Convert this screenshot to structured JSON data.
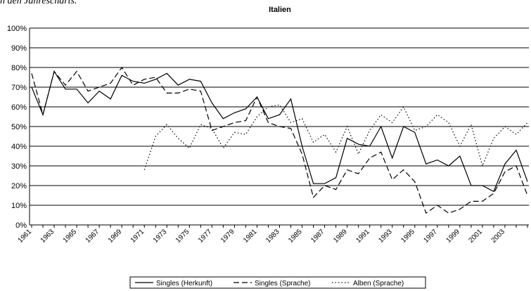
{
  "chart_data": {
    "type": "line",
    "title": "Italien",
    "annotation": "n den Jahrescharts.",
    "categories": [
      "1961",
      null,
      "1963",
      null,
      "1965",
      null,
      "1967",
      null,
      "1969",
      null,
      "1971",
      null,
      "1973",
      null,
      "1975",
      null,
      "1977",
      null,
      "1979",
      null,
      "1981",
      null,
      "1983",
      null,
      "1985",
      null,
      "1987",
      null,
      "1989",
      null,
      "1991",
      null,
      "1993",
      null,
      "1995",
      null,
      "1997",
      null,
      "1999",
      null,
      "2001",
      null,
      "2003",
      null,
      null
    ],
    "series": [
      {
        "name": "Singles (Herkunft)",
        "color": "#000000",
        "dash": "none",
        "values": [
          70,
          56,
          78,
          69,
          69,
          62,
          68,
          64,
          76,
          73,
          72,
          74,
          77,
          71,
          74,
          73,
          62,
          54,
          57,
          59,
          65,
          54,
          56,
          64,
          40,
          21,
          21,
          24,
          44,
          41,
          40,
          50,
          34,
          50,
          47,
          31,
          33,
          30,
          35,
          20,
          20,
          17,
          31,
          38,
          22
        ]
      },
      {
        "name": "Singles (Sprache)",
        "color": "#000000",
        "dash": "8,4",
        "values": [
          77,
          56,
          78,
          71,
          78,
          68,
          70,
          72,
          80,
          71,
          74,
          75,
          67,
          67,
          69,
          68,
          48,
          50,
          52,
          53,
          65,
          52,
          50,
          49,
          36,
          14,
          20,
          18,
          28,
          26,
          34,
          37,
          23,
          28,
          22,
          6,
          10,
          6,
          8,
          12,
          12,
          16,
          27,
          30,
          15
        ]
      },
      {
        "name": "Alben (Sprache)",
        "color": "#000000",
        "dash": "1.5,3",
        "values": [
          null,
          null,
          null,
          null,
          null,
          null,
          null,
          null,
          null,
          null,
          28,
          45,
          51,
          44,
          39,
          51,
          49,
          39,
          47,
          46,
          55,
          60,
          61,
          52,
          54,
          42,
          46,
          37,
          50,
          36,
          48,
          56,
          52,
          60,
          48,
          50,
          56,
          52,
          40,
          51,
          30,
          44,
          50,
          46,
          52
        ]
      }
    ],
    "ylim": [
      0,
      100
    ],
    "yticks": [
      {
        "value": 0,
        "label": "0%"
      },
      {
        "value": 10,
        "label": "10%"
      },
      {
        "value": 20,
        "label": "20%"
      },
      {
        "value": 30,
        "label": "30%"
      },
      {
        "value": 40,
        "label": "40%"
      },
      {
        "value": 50,
        "label": "50%"
      },
      {
        "value": 60,
        "label": "60%"
      },
      {
        "value": 70,
        "label": "70%"
      },
      {
        "value": 80,
        "label": "80%"
      },
      {
        "value": 90,
        "label": "90%"
      },
      {
        "value": 100,
        "label": "100%"
      }
    ],
    "grid": true,
    "legend": "bottom"
  }
}
